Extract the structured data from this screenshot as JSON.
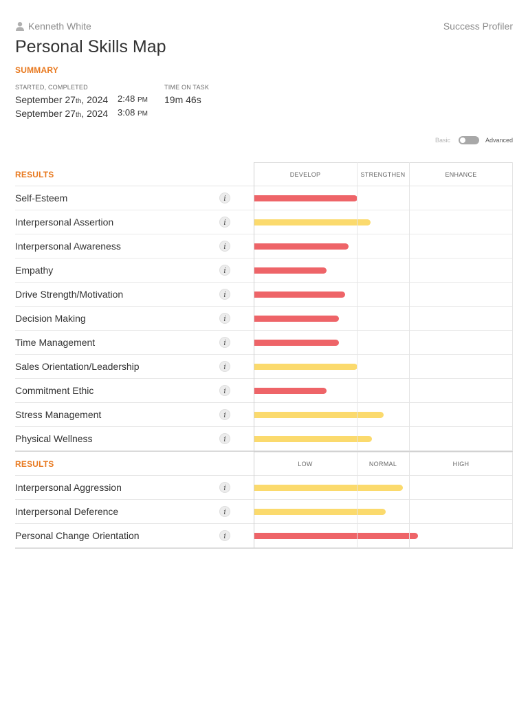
{
  "header": {
    "user_name": "Kenneth White",
    "app_name": "Success Profiler",
    "page_title": "Personal Skills Map"
  },
  "summary": {
    "heading": "SUMMARY",
    "started_label": "STARTED, COMPLETED",
    "started_date": {
      "month_day": "September 27",
      "suffix": "th",
      "year": ", 2024",
      "time": "2:48",
      "ampm": "PM"
    },
    "completed_date": {
      "month_day": "September 27",
      "suffix": "th",
      "year": ", 2024",
      "time": "3:08",
      "ampm": "PM"
    },
    "time_label": "TIME ON TASK",
    "time_value": "19m 46s"
  },
  "view_toggle": {
    "basic_label": "Basic",
    "advanced_label": "Advanced",
    "selected": "Advanced"
  },
  "colors": {
    "red": "#ee6468",
    "yellow": "#fbda6d",
    "accent": "#e8791f"
  },
  "tables": [
    {
      "heading": "RESULTS",
      "scale": [
        "DEVELOP",
        "STRENGTHEN",
        "ENHANCE"
      ],
      "rows": [
        {
          "label": "Self-Esteem",
          "value": 0.4,
          "color": "red"
        },
        {
          "label": "Interpersonal Assertion",
          "value": 0.45,
          "color": "yellow"
        },
        {
          "label": "Interpersonal Awareness",
          "value": 0.365,
          "color": "red"
        },
        {
          "label": "Empathy",
          "value": 0.28,
          "color": "red"
        },
        {
          "label": "Drive Strength/Motivation",
          "value": 0.352,
          "color": "red"
        },
        {
          "label": "Decision Making",
          "value": 0.328,
          "color": "red"
        },
        {
          "label": "Time Management",
          "value": 0.328,
          "color": "red"
        },
        {
          "label": "Sales Orientation/Leadership",
          "value": 0.4,
          "color": "yellow"
        },
        {
          "label": "Commitment Ethic",
          "value": 0.28,
          "color": "red"
        },
        {
          "label": "Stress Management",
          "value": 0.5,
          "color": "yellow"
        },
        {
          "label": "Physical Wellness",
          "value": 0.455,
          "color": "yellow"
        }
      ]
    },
    {
      "heading": "RESULTS",
      "scale": [
        "LOW",
        "NORMAL",
        "HIGH"
      ],
      "rows": [
        {
          "label": "Interpersonal Aggression",
          "value": 0.575,
          "color": "yellow"
        },
        {
          "label": "Interpersonal Deference",
          "value": 0.508,
          "color": "yellow"
        },
        {
          "label": "Personal Change Orientation",
          "value": 0.635,
          "color": "red"
        }
      ]
    }
  ]
}
